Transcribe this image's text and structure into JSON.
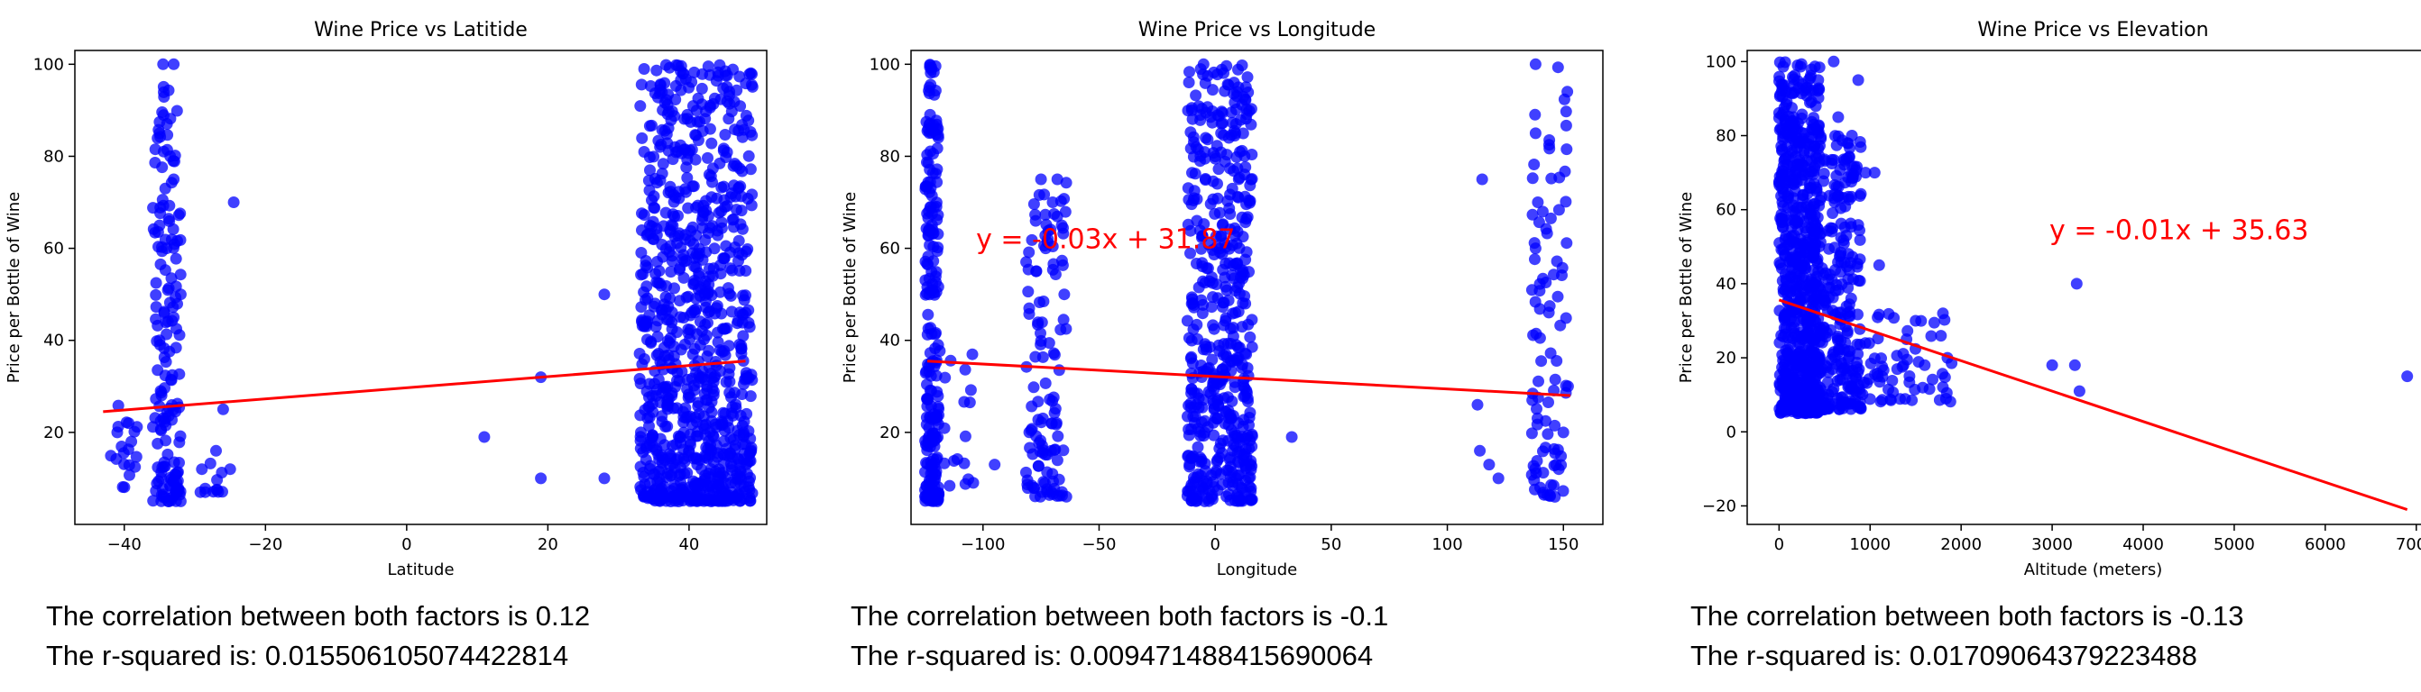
{
  "colors": {
    "points": "#0000ff",
    "regression": "#ff0000",
    "axes": "#000000"
  },
  "chart_data": [
    {
      "type": "scatter",
      "title": "Wine Price vs Latitide",
      "xlabel": "Latitude",
      "ylabel": "Price per Bottle of Wine",
      "xlim": [
        -47,
        51
      ],
      "ylim": [
        0,
        103
      ],
      "xticks": [
        -40,
        -20,
        0,
        20,
        40
      ],
      "yticks": [
        20,
        40,
        60,
        80,
        100
      ],
      "regression": {
        "x": [
          -43,
          48
        ],
        "y": [
          24.5,
          35.5
        ]
      },
      "equation": {
        "text": "",
        "x": 0,
        "y": 0
      },
      "clusters": [
        {
          "x": [
            -36,
            -32
          ],
          "y": [
            5,
            100
          ],
          "n": 160
        },
        {
          "x": [
            -42,
            -38
          ],
          "y": [
            8,
            26
          ],
          "n": 18
        },
        {
          "x": [
            -30,
            -26
          ],
          "y": [
            7,
            16
          ],
          "n": 12
        },
        {
          "x": [
            33,
            49
          ],
          "y": [
            5,
            100
          ],
          "n": 900
        }
      ],
      "points": [
        [
          -34.5,
          100
        ],
        [
          -33,
          100
        ],
        [
          -35,
          85
        ],
        [
          -33.5,
          80
        ],
        [
          -33,
          75
        ],
        [
          -35,
          65
        ],
        [
          -34,
          60
        ],
        [
          -32,
          50
        ],
        [
          -33,
          45
        ],
        [
          -35,
          40
        ],
        [
          -24.5,
          70
        ],
        [
          -41,
          20
        ],
        [
          -39,
          18
        ],
        [
          -26,
          25
        ],
        [
          -25,
          12
        ],
        [
          -27,
          16
        ],
        [
          11,
          19
        ],
        [
          19,
          32
        ],
        [
          19,
          10
        ],
        [
          28,
          50
        ],
        [
          28,
          10
        ]
      ]
    },
    {
      "type": "scatter",
      "title": "Wine Price vs Longitude",
      "xlabel": "Longitude",
      "ylabel": "Price per Bottle of Wine",
      "xlim": [
        -131,
        167
      ],
      "ylim": [
        0,
        103
      ],
      "xticks": [
        -100,
        -50,
        0,
        50,
        100,
        150
      ],
      "yticks": [
        20,
        40,
        60,
        80,
        100
      ],
      "regression": {
        "x": [
          -124,
          153
        ],
        "y": [
          35.5,
          28
        ]
      },
      "equation": {
        "text": "y = -0.03x + 31.87",
        "x": -103,
        "y": 60
      },
      "clusters": [
        {
          "x": [
            -125,
            -119
          ],
          "y": [
            5,
            100
          ],
          "n": 220
        },
        {
          "x": [
            -122,
            -104
          ],
          "y": [
            8,
            40
          ],
          "n": 22
        },
        {
          "x": [
            -82,
            -64
          ],
          "y": [
            6,
            75
          ],
          "n": 120
        },
        {
          "x": [
            -12,
            16
          ],
          "y": [
            5,
            100
          ],
          "n": 520
        },
        {
          "x": [
            136,
            152
          ],
          "y": [
            6,
            100
          ],
          "n": 90
        }
      ],
      "points": [
        [
          -95,
          13
        ],
        [
          -75,
          75
        ],
        [
          -68,
          75
        ],
        [
          -70,
          70
        ],
        [
          -73,
          60
        ],
        [
          -65,
          50
        ],
        [
          -10,
          90
        ],
        [
          -5,
          100
        ],
        [
          10,
          95
        ],
        [
          0,
          80
        ],
        [
          33,
          19
        ],
        [
          115,
          75
        ],
        [
          113,
          26
        ],
        [
          114,
          16
        ],
        [
          118,
          13
        ],
        [
          122,
          10
        ],
        [
          138,
          100
        ],
        [
          138,
          85
        ],
        [
          139,
          70
        ],
        [
          138,
          60
        ],
        [
          150,
          20
        ],
        [
          152,
          30
        ],
        [
          148,
          12
        ],
        [
          140,
          8
        ]
      ]
    },
    {
      "type": "scatter",
      "title": "Wine Price vs Elevation",
      "xlabel": "Altitude (meters)",
      "ylabel": "Price per Bottle of Wine",
      "xlim": [
        -350,
        7250
      ],
      "ylim": [
        -25,
        103
      ],
      "xticks": [
        0,
        1000,
        2000,
        3000,
        4000,
        5000,
        6000,
        7000
      ],
      "yticks": [
        -20,
        0,
        20,
        40,
        60,
        80,
        100
      ],
      "regression": {
        "x": [
          0,
          6900
        ],
        "y": [
          35.6,
          -21
        ]
      },
      "equation": {
        "text": "y = -0.01x + 35.63",
        "x": 2970,
        "y": 52
      },
      "clusters": [
        {
          "x": [
            0,
            450
          ],
          "y": [
            5,
            100
          ],
          "n": 700
        },
        {
          "x": [
            450,
            900
          ],
          "y": [
            6,
            80
          ],
          "n": 250
        },
        {
          "x": [
            900,
            1900
          ],
          "y": [
            8,
            32
          ],
          "n": 60
        }
      ],
      "points": [
        [
          600,
          100
        ],
        [
          870,
          95
        ],
        [
          950,
          70
        ],
        [
          1050,
          70
        ],
        [
          650,
          85
        ],
        [
          800,
          80
        ],
        [
          1100,
          45
        ],
        [
          1500,
          30
        ],
        [
          1800,
          32
        ],
        [
          1850,
          20
        ],
        [
          1400,
          25
        ],
        [
          1600,
          18
        ],
        [
          3000,
          18
        ],
        [
          3250,
          18
        ],
        [
          3270,
          40
        ],
        [
          3300,
          11
        ],
        [
          6900,
          15
        ]
      ]
    }
  ],
  "captions": [
    {
      "correlation": "The correlation between both factors is 0.12",
      "r_squared": "The r-squared is: 0.015506105074422814"
    },
    {
      "correlation": "The correlation between both factors is -0.1",
      "r_squared": "The r-squared is: 0.009471488415690064"
    },
    {
      "correlation": "The correlation between both factors is -0.13",
      "r_squared": "The r-squared is: 0.01709064379223488"
    }
  ]
}
